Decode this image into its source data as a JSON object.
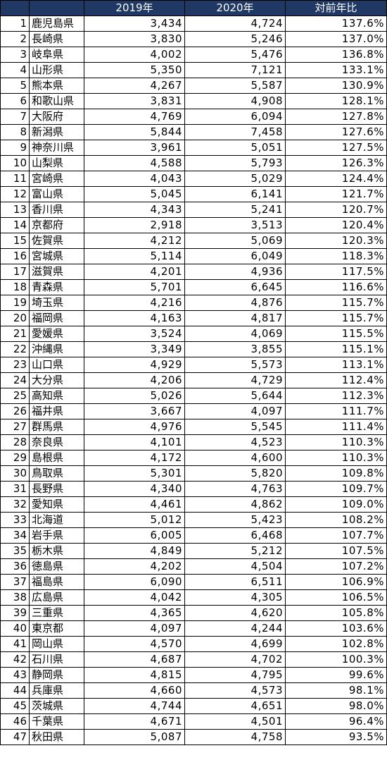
{
  "colors": {
    "header_bg": "#1f3864",
    "header_text": "#ffffff",
    "border": "#000000"
  },
  "chart_data": {
    "type": "table",
    "columns": [
      "",
      "",
      "2019年",
      "2020年",
      "対前年比"
    ],
    "rows": [
      {
        "rank": "1",
        "pref": "鹿児島県",
        "v2019": "3,434",
        "v2020": "4,724",
        "ratio": "137.6%"
      },
      {
        "rank": "2",
        "pref": "長崎県",
        "v2019": "3,830",
        "v2020": "5,246",
        "ratio": "137.0%"
      },
      {
        "rank": "3",
        "pref": "岐阜県",
        "v2019": "4,002",
        "v2020": "5,476",
        "ratio": "136.8%"
      },
      {
        "rank": "4",
        "pref": "山形県",
        "v2019": "5,350",
        "v2020": "7,121",
        "ratio": "133.1%"
      },
      {
        "rank": "5",
        "pref": "熊本県",
        "v2019": "4,267",
        "v2020": "5,587",
        "ratio": "130.9%"
      },
      {
        "rank": "6",
        "pref": "和歌山県",
        "v2019": "3,831",
        "v2020": "4,908",
        "ratio": "128.1%"
      },
      {
        "rank": "7",
        "pref": "大阪府",
        "v2019": "4,769",
        "v2020": "6,094",
        "ratio": "127.8%"
      },
      {
        "rank": "8",
        "pref": "新潟県",
        "v2019": "5,844",
        "v2020": "7,458",
        "ratio": "127.6%"
      },
      {
        "rank": "9",
        "pref": "神奈川県",
        "v2019": "3,961",
        "v2020": "5,051",
        "ratio": "127.5%"
      },
      {
        "rank": "10",
        "pref": "山梨県",
        "v2019": "4,588",
        "v2020": "5,793",
        "ratio": "126.3%"
      },
      {
        "rank": "11",
        "pref": "宮崎県",
        "v2019": "4,043",
        "v2020": "5,029",
        "ratio": "124.4%"
      },
      {
        "rank": "12",
        "pref": "富山県",
        "v2019": "5,045",
        "v2020": "6,141",
        "ratio": "121.7%"
      },
      {
        "rank": "13",
        "pref": "香川県",
        "v2019": "4,343",
        "v2020": "5,241",
        "ratio": "120.7%"
      },
      {
        "rank": "14",
        "pref": "京都府",
        "v2019": "2,918",
        "v2020": "3,513",
        "ratio": "120.4%"
      },
      {
        "rank": "15",
        "pref": "佐賀県",
        "v2019": "4,212",
        "v2020": "5,069",
        "ratio": "120.3%"
      },
      {
        "rank": "16",
        "pref": "宮城県",
        "v2019": "5,114",
        "v2020": "6,049",
        "ratio": "118.3%"
      },
      {
        "rank": "17",
        "pref": "滋賀県",
        "v2019": "4,201",
        "v2020": "4,936",
        "ratio": "117.5%"
      },
      {
        "rank": "18",
        "pref": "青森県",
        "v2019": "5,701",
        "v2020": "6,645",
        "ratio": "116.6%"
      },
      {
        "rank": "19",
        "pref": "埼玉県",
        "v2019": "4,216",
        "v2020": "4,876",
        "ratio": "115.7%"
      },
      {
        "rank": "20",
        "pref": "福岡県",
        "v2019": "4,163",
        "v2020": "4,817",
        "ratio": "115.7%"
      },
      {
        "rank": "21",
        "pref": "愛媛県",
        "v2019": "3,524",
        "v2020": "4,069",
        "ratio": "115.5%"
      },
      {
        "rank": "22",
        "pref": "沖縄県",
        "v2019": "3,349",
        "v2020": "3,855",
        "ratio": "115.1%"
      },
      {
        "rank": "23",
        "pref": "山口県",
        "v2019": "4,929",
        "v2020": "5,573",
        "ratio": "113.1%"
      },
      {
        "rank": "24",
        "pref": "大分県",
        "v2019": "4,206",
        "v2020": "4,729",
        "ratio": "112.4%"
      },
      {
        "rank": "25",
        "pref": "高知県",
        "v2019": "5,026",
        "v2020": "5,644",
        "ratio": "112.3%"
      },
      {
        "rank": "26",
        "pref": "福井県",
        "v2019": "3,667",
        "v2020": "4,097",
        "ratio": "111.7%"
      },
      {
        "rank": "27",
        "pref": "群馬県",
        "v2019": "4,976",
        "v2020": "5,545",
        "ratio": "111.4%"
      },
      {
        "rank": "28",
        "pref": "奈良県",
        "v2019": "4,101",
        "v2020": "4,523",
        "ratio": "110.3%"
      },
      {
        "rank": "29",
        "pref": "島根県",
        "v2019": "4,172",
        "v2020": "4,600",
        "ratio": "110.3%"
      },
      {
        "rank": "30",
        "pref": "鳥取県",
        "v2019": "5,301",
        "v2020": "5,820",
        "ratio": "109.8%"
      },
      {
        "rank": "31",
        "pref": "長野県",
        "v2019": "4,340",
        "v2020": "4,763",
        "ratio": "109.7%"
      },
      {
        "rank": "32",
        "pref": "愛知県",
        "v2019": "4,461",
        "v2020": "4,862",
        "ratio": "109.0%"
      },
      {
        "rank": "33",
        "pref": "北海道",
        "v2019": "5,012",
        "v2020": "5,423",
        "ratio": "108.2%"
      },
      {
        "rank": "34",
        "pref": "岩手県",
        "v2019": "6,005",
        "v2020": "6,468",
        "ratio": "107.7%"
      },
      {
        "rank": "35",
        "pref": "栃木県",
        "v2019": "4,849",
        "v2020": "5,212",
        "ratio": "107.5%"
      },
      {
        "rank": "36",
        "pref": "徳島県",
        "v2019": "4,202",
        "v2020": "4,504",
        "ratio": "107.2%"
      },
      {
        "rank": "37",
        "pref": "福島県",
        "v2019": "6,090",
        "v2020": "6,511",
        "ratio": "106.9%"
      },
      {
        "rank": "38",
        "pref": "広島県",
        "v2019": "4,042",
        "v2020": "4,305",
        "ratio": "106.5%"
      },
      {
        "rank": "39",
        "pref": "三重県",
        "v2019": "4,365",
        "v2020": "4,620",
        "ratio": "105.8%"
      },
      {
        "rank": "40",
        "pref": "東京都",
        "v2019": "4,097",
        "v2020": "4,244",
        "ratio": "103.6%"
      },
      {
        "rank": "41",
        "pref": "岡山県",
        "v2019": "4,570",
        "v2020": "4,699",
        "ratio": "102.8%"
      },
      {
        "rank": "42",
        "pref": "石川県",
        "v2019": "4,687",
        "v2020": "4,702",
        "ratio": "100.3%"
      },
      {
        "rank": "43",
        "pref": "静岡県",
        "v2019": "4,815",
        "v2020": "4,795",
        "ratio": "99.6%"
      },
      {
        "rank": "44",
        "pref": "兵庫県",
        "v2019": "4,660",
        "v2020": "4,573",
        "ratio": "98.1%"
      },
      {
        "rank": "45",
        "pref": "茨城県",
        "v2019": "4,744",
        "v2020": "4,651",
        "ratio": "98.0%"
      },
      {
        "rank": "46",
        "pref": "千葉県",
        "v2019": "4,671",
        "v2020": "4,501",
        "ratio": "96.4%"
      },
      {
        "rank": "47",
        "pref": "秋田県",
        "v2019": "5,087",
        "v2020": "4,758",
        "ratio": "93.5%"
      }
    ]
  }
}
